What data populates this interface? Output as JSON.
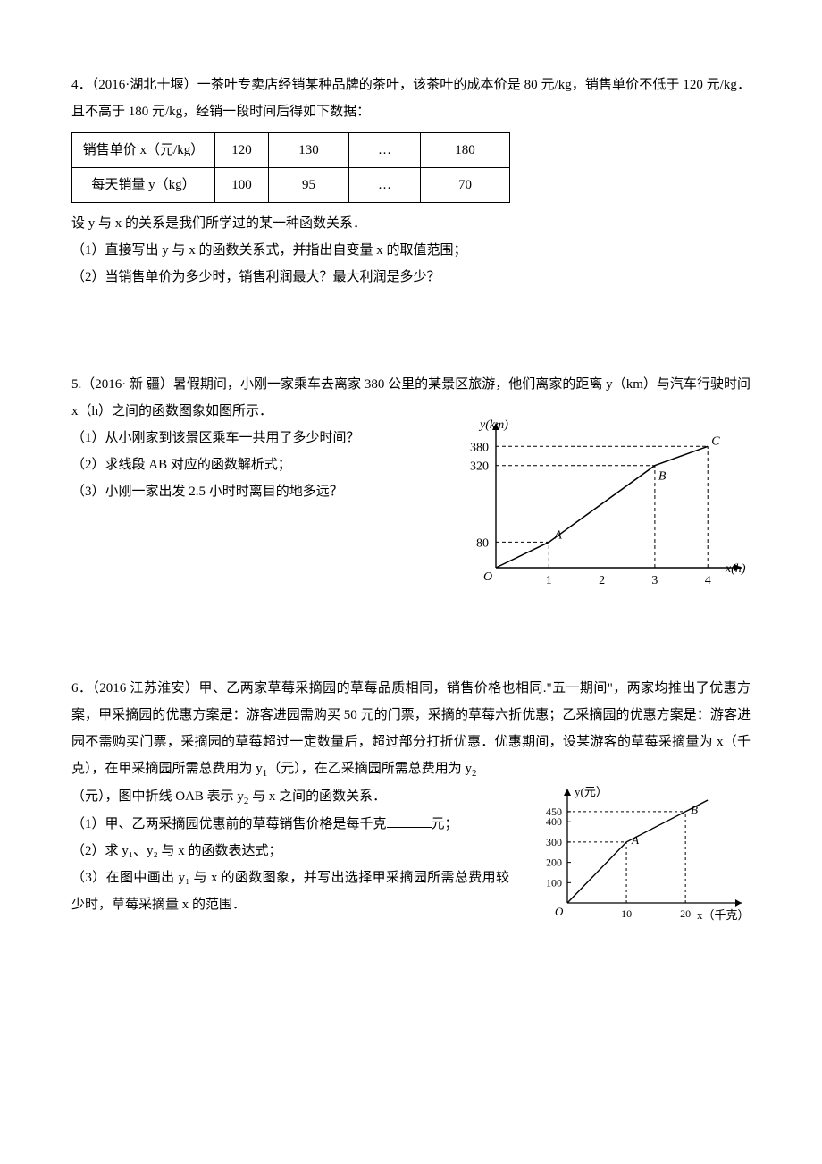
{
  "problem4": {
    "intro": "4．（2016·湖北十堰）一茶叶专卖店经销某种品牌的茶叶，该茶叶的成本价是 80 元/kg，销售单价不低于 120 元/kg．且不高于 180 元/kg，经销一段时间后得如下数据：",
    "table": {
      "row0": [
        "销售单价 x（元/kg）",
        "120",
        "130",
        "…",
        "180"
      ],
      "row1": [
        "每天销量 y（kg）",
        "100",
        "95",
        "…",
        "70"
      ]
    },
    "line2": "设 y 与 x 的关系是我们所学过的某一种函数关系．",
    "q1": "（1）直接写出 y 与 x 的函数关系式，并指出自变量 x 的取值范围；",
    "q2": "（2）当销售单价为多少时，销售利润最大？最大利润是多少？"
  },
  "problem5": {
    "intro": "5.（2016· 新 疆）暑假期间，小刚一家乘车去离家 380 公里的某景区旅游，他们离家的距离 y（km）与汽车行驶时间 x（h）之间的函数图象如图所示．",
    "q1": "（1）从小刚家到该景区乘车一共用了多少时间？",
    "q2": "（2）求线段 AB 对应的函数解析式；",
    "q3": "（3）小刚一家出发 2.5 小时时离目的地多远？",
    "chart": {
      "ylabel": "y(km)",
      "xlabel": "x(h)",
      "yticks": [
        {
          "v": 80,
          "l": "80"
        },
        {
          "v": 320,
          "l": "320"
        },
        {
          "v": 380,
          "l": "380"
        }
      ],
      "xticks": [
        {
          "v": 1,
          "l": "1"
        },
        {
          "v": 2,
          "l": "2"
        },
        {
          "v": 3,
          "l": "3"
        },
        {
          "v": 4,
          "l": "4"
        }
      ],
      "origin": "O",
      "points": {
        "A": {
          "x": 1,
          "y": 80,
          "l": "A"
        },
        "B": {
          "x": 3,
          "y": 320,
          "l": "B"
        },
        "C": {
          "x": 4,
          "y": 380,
          "l": "C"
        }
      },
      "xlim": [
        0,
        4.3
      ],
      "ylim": [
        0,
        420
      ],
      "stroke": "#000000",
      "dash": "4,3"
    }
  },
  "problem6": {
    "intro1": "6．（2016 江苏淮安）甲、乙两家草莓采摘园的草莓品质相同，销售价格也相同.\"五一期间\"，两家均推出了优惠方案，甲采摘园的优惠方案是：游客进园需购买 50 元的门票，采摘的草莓六折优惠；乙采摘园的优惠方案是：游客进园不需购买门票，采摘园的草莓超过一定数量后，超过部分打折优惠．优惠期间，设某游客的草莓采摘量为 x（千克），在甲采摘园所需总费用为 y",
    "y1sub": "1",
    "intro2": "（元），在乙采摘园所需总费用为 y",
    "y2sub": "2",
    "intro3": "（元），图中折线 OAB 表示 y",
    "intro4": " 与 x 之间的函数关系．",
    "q1a": "（1）甲、乙两采摘园优惠前的草莓销售价格是每千克",
    "q1b": "元；",
    "q2": "（2）求 y₁、y₂ 与 x 的函数表达式；",
    "q3": "（3）在图中画出 y₁ 与 x 的函数图象，并写出选择甲采摘园所需总费用较少时，草莓采摘量 x 的范围．",
    "chart": {
      "ylabel": "y(元）",
      "xlabel": "x（千克）",
      "yticks": [
        {
          "v": 100,
          "l": "100"
        },
        {
          "v": 200,
          "l": "200"
        },
        {
          "v": 300,
          "l": "300"
        },
        {
          "v": 400,
          "l": "400"
        },
        {
          "v": 450,
          "l": "450"
        }
      ],
      "xticks": [
        {
          "v": 10,
          "l": "10"
        },
        {
          "v": 20,
          "l": "20"
        }
      ],
      "origin": "O",
      "points": {
        "A": {
          "x": 10,
          "y": 300,
          "l": "A"
        },
        "B": {
          "x": 20,
          "y": 450,
          "l": "B"
        }
      },
      "xlim": [
        0,
        28
      ],
      "ylim": [
        0,
        520
      ],
      "stroke": "#000000",
      "dash": "3,3"
    }
  }
}
